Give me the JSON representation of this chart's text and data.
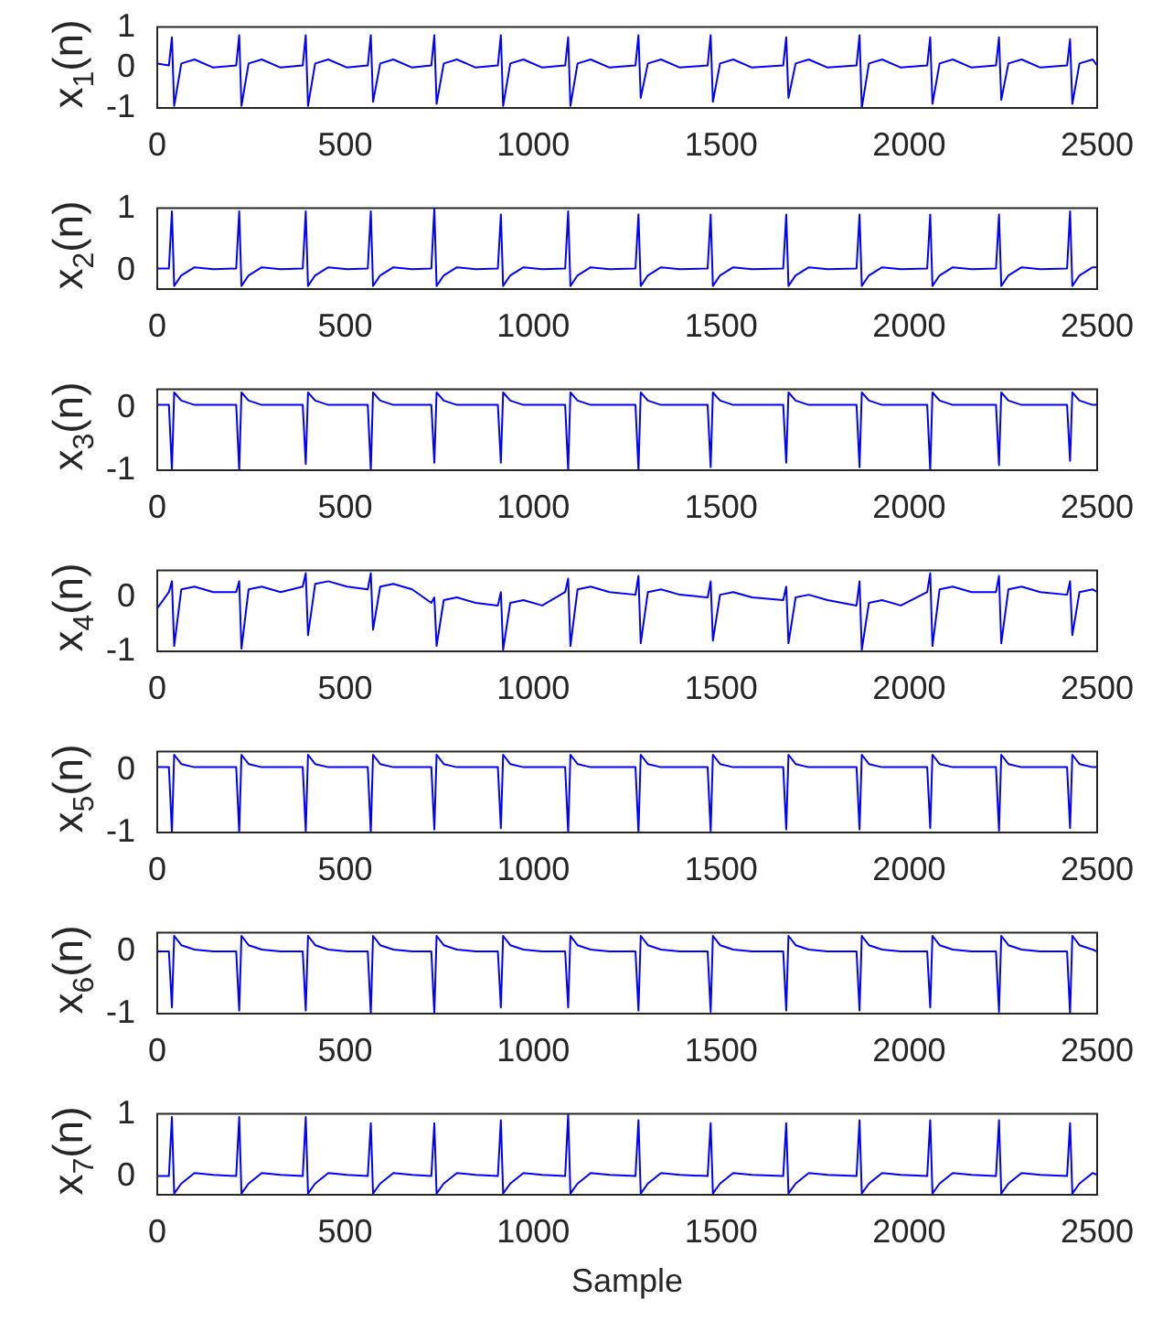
{
  "chart_data": [
    {
      "type": "line",
      "ylabel": "x$_{1}$(n)",
      "color": "#0000ff",
      "xlim": [
        0,
        2500
      ],
      "xticks": [
        0,
        500,
        1000,
        1500,
        2000,
        2500
      ],
      "ylim": [
        -1,
        1
      ],
      "yticks": [
        -1,
        0,
        1
      ],
      "x": [
        0,
        31,
        39,
        45,
        64,
        99,
        149,
        210,
        218,
        224,
        243,
        278,
        328,
        387,
        395,
        401,
        420,
        455,
        505,
        560,
        568,
        574,
        593,
        628,
        678,
        729,
        737,
        743,
        762,
        797,
        847,
        906,
        914,
        920,
        939,
        974,
        1024,
        1085,
        1093,
        1099,
        1118,
        1153,
        1203,
        1272,
        1280,
        1286,
        1305,
        1340,
        1390,
        1464,
        1472,
        1478,
        1497,
        1532,
        1582,
        1665,
        1673,
        1679,
        1698,
        1733,
        1783,
        1860,
        1868,
        1874,
        1893,
        1928,
        1978,
        2048,
        2056,
        2062,
        2081,
        2116,
        2166,
        2231,
        2239,
        2245,
        2264,
        2299,
        2349,
        2420,
        2428,
        2434,
        2453,
        2488,
        2500
      ],
      "values": [
        0.1,
        0.05,
        0.75,
        -0.95,
        0.1,
        0.2,
        0.0,
        0.05,
        0.8,
        -0.95,
        0.1,
        0.2,
        0.0,
        0.05,
        0.8,
        -0.95,
        0.1,
        0.2,
        0.0,
        0.05,
        0.8,
        -0.85,
        0.1,
        0.2,
        0.0,
        0.05,
        0.8,
        -0.9,
        0.1,
        0.2,
        0.0,
        0.05,
        0.8,
        -0.95,
        0.1,
        0.2,
        0.0,
        0.05,
        0.75,
        -0.95,
        0.1,
        0.2,
        0.0,
        0.05,
        0.8,
        -0.75,
        0.1,
        0.2,
        0.0,
        0.05,
        0.8,
        -0.85,
        0.1,
        0.2,
        0.0,
        0.05,
        0.75,
        -0.75,
        0.1,
        0.2,
        0.0,
        0.05,
        0.8,
        -1,
        0.1,
        0.2,
        0.0,
        0.05,
        0.75,
        -0.9,
        0.1,
        0.2,
        0.0,
        0.05,
        0.75,
        -0.8,
        0.1,
        0.2,
        0.0,
        0.05,
        0.7,
        -0.9,
        0.1,
        0.2,
        0.05
      ]
    },
    {
      "type": "line",
      "ylabel": "x$_{2}$(n)",
      "color": "#0000ff",
      "xlim": [
        0,
        2500
      ],
      "xticks": [
        0,
        500,
        1000,
        1500,
        2000,
        2500
      ],
      "ylim": [
        -0.3,
        1
      ],
      "yticks": [
        0,
        1
      ],
      "x": [
        0,
        31,
        39,
        45,
        64,
        99,
        149,
        210,
        218,
        224,
        243,
        278,
        328,
        387,
        395,
        401,
        420,
        455,
        505,
        560,
        568,
        574,
        593,
        628,
        678,
        729,
        737,
        743,
        762,
        797,
        847,
        906,
        914,
        920,
        939,
        974,
        1024,
        1085,
        1093,
        1099,
        1118,
        1153,
        1203,
        1272,
        1280,
        1286,
        1305,
        1340,
        1390,
        1464,
        1472,
        1478,
        1497,
        1532,
        1582,
        1665,
        1673,
        1679,
        1698,
        1733,
        1783,
        1860,
        1868,
        1874,
        1893,
        1928,
        1978,
        2048,
        2056,
        2062,
        2081,
        2116,
        2166,
        2231,
        2239,
        2245,
        2264,
        2299,
        2349,
        2420,
        2428,
        2434,
        2453,
        2488,
        2500
      ],
      "values": [
        0.03,
        0.03,
        0.95,
        -0.25,
        -0.08,
        0.05,
        0.02,
        0.03,
        0.95,
        -0.25,
        -0.08,
        0.05,
        0.02,
        0.03,
        0.95,
        -0.25,
        -0.08,
        0.05,
        0.02,
        0.03,
        0.95,
        -0.25,
        -0.08,
        0.05,
        0.02,
        0.03,
        1,
        -0.25,
        -0.08,
        0.05,
        0.02,
        0.03,
        0.9,
        -0.25,
        -0.08,
        0.05,
        0.02,
        0.03,
        0.95,
        -0.25,
        -0.08,
        0.05,
        0.02,
        0.03,
        0.9,
        -0.25,
        -0.08,
        0.05,
        0.02,
        0.03,
        0.9,
        -0.25,
        -0.08,
        0.05,
        0.02,
        0.03,
        0.9,
        -0.25,
        -0.08,
        0.05,
        0.02,
        0.03,
        0.9,
        -0.25,
        -0.08,
        0.05,
        0.02,
        0.03,
        0.9,
        -0.25,
        -0.08,
        0.05,
        0.02,
        0.03,
        0.9,
        -0.25,
        -0.08,
        0.05,
        0.02,
        0.03,
        0.95,
        -0.25,
        -0.08,
        0.05,
        0.05
      ]
    },
    {
      "type": "line",
      "ylabel": "x$_{3}$(n)",
      "color": "#0000ff",
      "xlim": [
        0,
        2500
      ],
      "xticks": [
        0,
        500,
        1000,
        1500,
        2000,
        2500
      ],
      "ylim": [
        -1,
        0.3
      ],
      "yticks": [
        -1,
        0
      ],
      "x": [
        0,
        31,
        39,
        45,
        64,
        99,
        149,
        210,
        218,
        224,
        243,
        278,
        328,
        387,
        395,
        401,
        420,
        455,
        505,
        560,
        568,
        574,
        593,
        628,
        678,
        729,
        737,
        743,
        762,
        797,
        847,
        906,
        914,
        920,
        939,
        974,
        1024,
        1085,
        1093,
        1099,
        1118,
        1153,
        1203,
        1272,
        1280,
        1286,
        1305,
        1340,
        1390,
        1464,
        1472,
        1478,
        1497,
        1532,
        1582,
        1665,
        1673,
        1679,
        1698,
        1733,
        1783,
        1860,
        1868,
        1874,
        1893,
        1928,
        1978,
        2048,
        2056,
        2062,
        2081,
        2116,
        2166,
        2231,
        2239,
        2245,
        2264,
        2299,
        2349,
        2420,
        2428,
        2434,
        2453,
        2488,
        2500
      ],
      "values": [
        0.05,
        0.05,
        -1,
        0.25,
        0.12,
        0.05,
        0.05,
        0.05,
        -1,
        0.25,
        0.12,
        0.05,
        0.05,
        0.05,
        -0.9,
        0.25,
        0.12,
        0.05,
        0.05,
        0.05,
        -1,
        0.25,
        0.12,
        0.05,
        0.05,
        0.05,
        -0.88,
        0.25,
        0.12,
        0.05,
        0.05,
        0.05,
        -0.88,
        0.25,
        0.12,
        0.05,
        0.05,
        0.05,
        -1,
        0.25,
        0.12,
        0.05,
        0.05,
        0.05,
        -1,
        0.25,
        0.12,
        0.05,
        0.05,
        0.05,
        -0.95,
        0.25,
        0.12,
        0.05,
        0.05,
        0.05,
        -0.88,
        0.25,
        0.12,
        0.05,
        0.05,
        0.05,
        -0.95,
        0.25,
        0.12,
        0.05,
        0.05,
        0.05,
        -1,
        0.25,
        0.12,
        0.05,
        0.05,
        0.05,
        -0.92,
        0.25,
        0.12,
        0.05,
        0.05,
        0.05,
        -0.85,
        0.25,
        0.12,
        0.05,
        0.05
      ]
    },
    {
      "type": "line",
      "ylabel": "x$_{4}$(n)",
      "color": "#0000ff",
      "xlim": [
        0,
        2500
      ],
      "xticks": [
        0,
        500,
        1000,
        1500,
        2000,
        2500
      ],
      "ylim": [
        -1,
        0.5
      ],
      "yticks": [
        -1,
        0
      ],
      "x": [
        0,
        31,
        39,
        45,
        64,
        99,
        149,
        210,
        218,
        224,
        243,
        278,
        328,
        387,
        395,
        401,
        420,
        455,
        505,
        560,
        568,
        574,
        593,
        628,
        678,
        729,
        737,
        743,
        762,
        797,
        847,
        906,
        914,
        920,
        939,
        974,
        1024,
        1085,
        1093,
        1099,
        1118,
        1153,
        1203,
        1272,
        1280,
        1286,
        1305,
        1340,
        1390,
        1464,
        1472,
        1478,
        1497,
        1532,
        1582,
        1665,
        1673,
        1679,
        1698,
        1733,
        1783,
        1860,
        1868,
        1874,
        1893,
        1928,
        1978,
        2048,
        2056,
        2062,
        2081,
        2116,
        2166,
        2231,
        2239,
        2245,
        2264,
        2299,
        2349,
        2420,
        2428,
        2434,
        2453,
        2488,
        2500
      ],
      "values": [
        -0.2,
        0.1,
        0.3,
        -0.9,
        0.15,
        0.2,
        0.1,
        0.1,
        0.3,
        -0.95,
        0.15,
        0.2,
        0.1,
        0.2,
        0.45,
        -0.7,
        0.25,
        0.3,
        0.2,
        0.15,
        0.45,
        -0.6,
        0.2,
        0.25,
        0.15,
        -0.1,
        0.0,
        -0.9,
        -0.05,
        0.0,
        -0.1,
        -0.15,
        0.1,
        -0.97,
        -0.1,
        -0.05,
        -0.15,
        0.1,
        0.35,
        -0.9,
        0.15,
        0.2,
        0.1,
        0.05,
        0.4,
        -0.85,
        0.1,
        0.15,
        0.05,
        0.0,
        0.3,
        -0.8,
        0.05,
        0.1,
        0.0,
        -0.05,
        0.2,
        -0.85,
        0.0,
        0.05,
        -0.05,
        -0.15,
        0.3,
        -0.97,
        -0.1,
        -0.05,
        -0.15,
        0.1,
        0.45,
        -0.9,
        0.15,
        0.2,
        0.1,
        0.1,
        0.4,
        -0.85,
        0.15,
        0.2,
        0.1,
        0.05,
        0.3,
        -0.7,
        0.1,
        0.15,
        0.1
      ]
    },
    {
      "type": "line",
      "ylabel": "x$_{5}$(n)",
      "color": "#0000ff",
      "xlim": [
        0,
        2500
      ],
      "xticks": [
        0,
        500,
        1000,
        1500,
        2000,
        2500
      ],
      "ylim": [
        -1,
        0.3
      ],
      "yticks": [
        -1,
        0
      ],
      "x": [
        0,
        31,
        39,
        45,
        64,
        99,
        149,
        210,
        218,
        224,
        243,
        278,
        328,
        387,
        395,
        401,
        420,
        455,
        505,
        560,
        568,
        574,
        593,
        628,
        678,
        729,
        737,
        743,
        762,
        797,
        847,
        906,
        914,
        920,
        939,
        974,
        1024,
        1085,
        1093,
        1099,
        1118,
        1153,
        1203,
        1272,
        1280,
        1286,
        1305,
        1340,
        1390,
        1464,
        1472,
        1478,
        1497,
        1532,
        1582,
        1665,
        1673,
        1679,
        1698,
        1733,
        1783,
        1860,
        1868,
        1874,
        1893,
        1928,
        1978,
        2048,
        2056,
        2062,
        2081,
        2116,
        2166,
        2231,
        2239,
        2245,
        2264,
        2299,
        2349,
        2420,
        2428,
        2434,
        2453,
        2488,
        2500
      ],
      "values": [
        0.05,
        0.05,
        -1,
        0.25,
        0.1,
        0.05,
        0.05,
        0.05,
        -1,
        0.25,
        0.1,
        0.05,
        0.05,
        0.05,
        -0.98,
        0.25,
        0.1,
        0.05,
        0.05,
        0.05,
        -1,
        0.25,
        0.1,
        0.05,
        0.05,
        0.05,
        -0.95,
        0.25,
        0.1,
        0.05,
        0.05,
        0.05,
        -0.93,
        0.25,
        0.1,
        0.05,
        0.05,
        0.05,
        -1,
        0.25,
        0.1,
        0.05,
        0.05,
        0.05,
        -1,
        0.25,
        0.1,
        0.05,
        0.05,
        0.05,
        -0.98,
        0.25,
        0.1,
        0.05,
        0.05,
        0.05,
        -0.95,
        0.25,
        0.1,
        0.05,
        0.05,
        0.05,
        -0.95,
        0.25,
        0.1,
        0.05,
        0.05,
        0.05,
        -0.93,
        0.25,
        0.1,
        0.05,
        0.05,
        0.05,
        -0.97,
        0.25,
        0.1,
        0.05,
        0.05,
        0.05,
        -0.93,
        0.25,
        0.1,
        0.05,
        0.05
      ]
    },
    {
      "type": "line",
      "ylabel": "x$_{6}$(n)",
      "color": "#0000ff",
      "xlim": [
        0,
        2500
      ],
      "xticks": [
        0,
        500,
        1000,
        1500,
        2000,
        2500
      ],
      "ylim": [
        -1,
        0.3
      ],
      "yticks": [
        -1,
        0
      ],
      "x": [
        0,
        31,
        39,
        45,
        64,
        99,
        149,
        210,
        218,
        224,
        243,
        278,
        328,
        387,
        395,
        401,
        420,
        455,
        505,
        560,
        568,
        574,
        593,
        628,
        678,
        729,
        737,
        743,
        762,
        797,
        847,
        906,
        914,
        920,
        939,
        974,
        1024,
        1085,
        1093,
        1099,
        1118,
        1153,
        1203,
        1272,
        1280,
        1286,
        1305,
        1340,
        1390,
        1464,
        1472,
        1478,
        1497,
        1532,
        1582,
        1665,
        1673,
        1679,
        1698,
        1733,
        1783,
        1860,
        1868,
        1874,
        1893,
        1928,
        1978,
        2048,
        2056,
        2062,
        2081,
        2116,
        2166,
        2231,
        2239,
        2245,
        2264,
        2299,
        2349,
        2420,
        2428,
        2434,
        2453,
        2488,
        2500
      ],
      "values": [
        0.0,
        0.0,
        -0.9,
        0.25,
        0.1,
        0.03,
        0.0,
        0.0,
        -0.95,
        0.25,
        0.1,
        0.03,
        0.0,
        0.0,
        -0.95,
        0.25,
        0.1,
        0.03,
        0.0,
        0.0,
        -1,
        0.25,
        0.1,
        0.03,
        0.0,
        0.0,
        -1,
        0.25,
        0.1,
        0.03,
        0.0,
        0.0,
        -0.9,
        0.25,
        0.1,
        0.03,
        0.0,
        0.0,
        -0.9,
        0.25,
        0.1,
        0.03,
        0.0,
        0.0,
        -0.95,
        0.25,
        0.1,
        0.03,
        0.0,
        0.0,
        -0.97,
        0.25,
        0.1,
        0.03,
        0.0,
        0.0,
        -0.95,
        0.25,
        0.1,
        0.03,
        0.0,
        0.0,
        -0.95,
        0.25,
        0.1,
        0.03,
        0.0,
        0.0,
        -0.9,
        0.25,
        0.1,
        0.03,
        0.0,
        0.0,
        -0.97,
        0.25,
        0.1,
        0.03,
        0.0,
        0.0,
        -1,
        0.25,
        0.1,
        0.03,
        0.0
      ]
    },
    {
      "type": "line",
      "ylabel": "x$_{7}$(n)",
      "xlabel": "Sample",
      "color": "#0000ff",
      "xlim": [
        0,
        2500
      ],
      "xticks": [
        0,
        500,
        1000,
        1500,
        2000,
        2500
      ],
      "ylim": [
        -0.3,
        1
      ],
      "yticks": [
        0,
        1
      ],
      "x": [
        0,
        31,
        39,
        45,
        64,
        99,
        149,
        210,
        218,
        224,
        243,
        278,
        328,
        387,
        395,
        401,
        420,
        455,
        505,
        560,
        568,
        574,
        593,
        628,
        678,
        729,
        737,
        743,
        762,
        797,
        847,
        906,
        914,
        920,
        939,
        974,
        1024,
        1085,
        1093,
        1099,
        1118,
        1153,
        1203,
        1272,
        1280,
        1286,
        1305,
        1340,
        1390,
        1464,
        1472,
        1478,
        1497,
        1532,
        1582,
        1665,
        1673,
        1679,
        1698,
        1733,
        1783,
        1860,
        1868,
        1874,
        1893,
        1928,
        1978,
        2048,
        2056,
        2062,
        2081,
        2116,
        2166,
        2231,
        2239,
        2245,
        2264,
        2299,
        2349,
        2420,
        2428,
        2434,
        2453,
        2488,
        2500
      ],
      "values": [
        0.0,
        0.0,
        0.95,
        -0.28,
        -0.12,
        0.05,
        0.02,
        0.0,
        0.95,
        -0.28,
        -0.12,
        0.05,
        0.02,
        0.0,
        0.95,
        -0.28,
        -0.12,
        0.05,
        0.02,
        0.0,
        0.85,
        -0.28,
        -0.12,
        0.05,
        0.02,
        0.0,
        0.85,
        -0.28,
        -0.12,
        0.05,
        0.02,
        0.0,
        0.9,
        -0.28,
        -0.12,
        0.05,
        0.02,
        0.0,
        1,
        -0.28,
        -0.12,
        0.05,
        0.02,
        0.0,
        0.9,
        -0.28,
        -0.12,
        0.05,
        0.02,
        0.0,
        0.85,
        -0.28,
        -0.12,
        0.05,
        0.02,
        0.0,
        0.85,
        -0.28,
        -0.12,
        0.05,
        0.02,
        0.0,
        0.9,
        -0.28,
        -0.12,
        0.05,
        0.02,
        0.0,
        0.9,
        -0.28,
        -0.12,
        0.05,
        0.02,
        0.0,
        0.9,
        -0.28,
        -0.12,
        0.05,
        0.02,
        0.0,
        0.85,
        -0.28,
        -0.12,
        0.05,
        0.02
      ]
    }
  ]
}
